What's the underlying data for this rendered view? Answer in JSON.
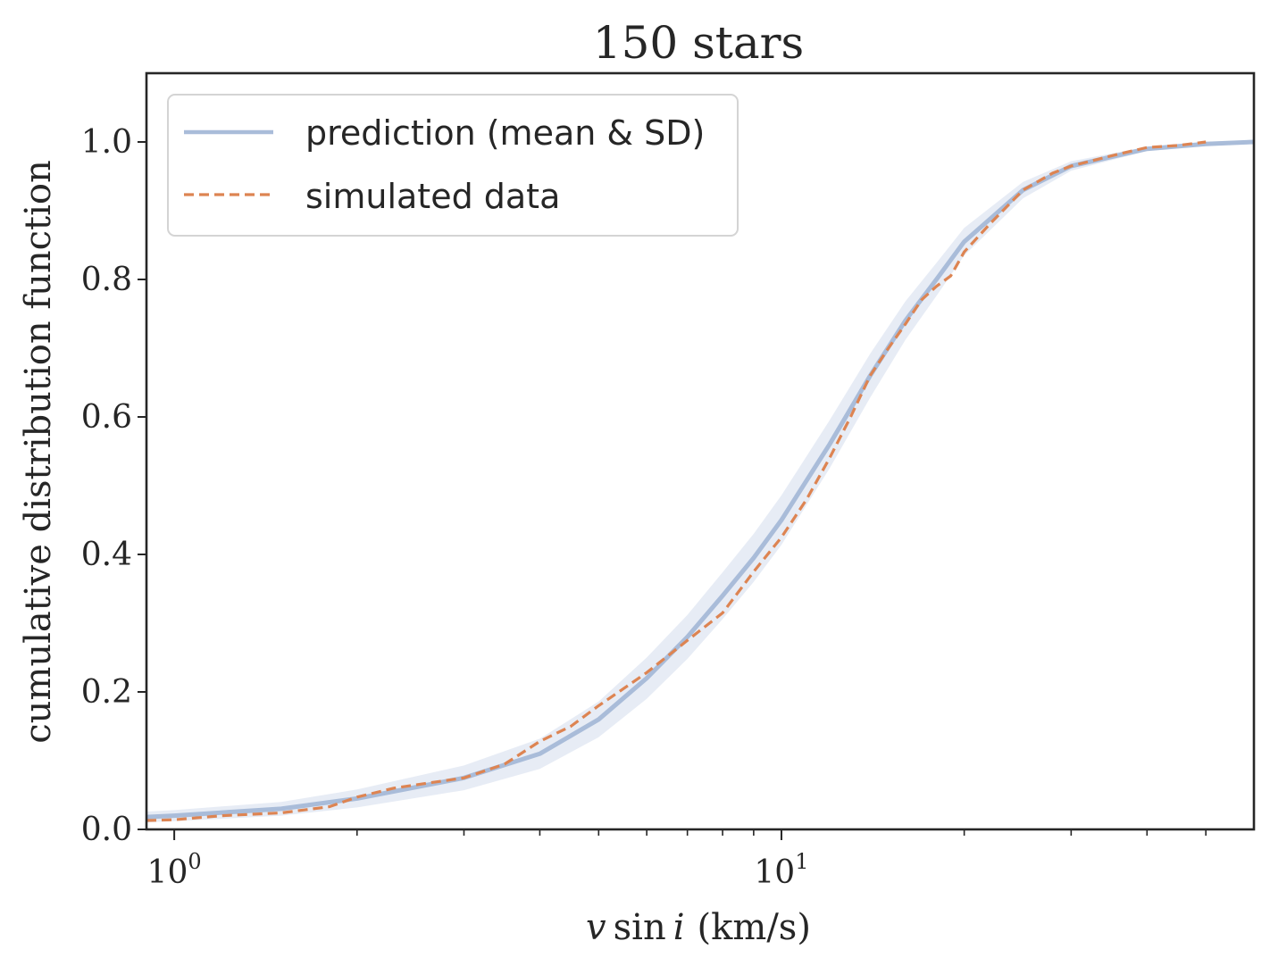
{
  "chart_data": {
    "type": "line",
    "title": "150 stars",
    "xlabel": "v sin i (km/s)",
    "xlabel_parts": {
      "v": "v",
      "sin": "sin",
      "i": "i",
      "units": "(km/s)"
    },
    "ylabel": "cumulative distribution function",
    "xscale": "log",
    "xlim": [
      0.9,
      60
    ],
    "ylim": [
      0.0,
      1.1
    ],
    "x_ticks": [
      {
        "value": 1,
        "base": "10",
        "exp": "0"
      },
      {
        "value": 10,
        "base": "10",
        "exp": "1"
      }
    ],
    "y_ticks": [
      {
        "value": 0.0,
        "label": "0.0"
      },
      {
        "value": 0.2,
        "label": "0.2"
      },
      {
        "value": 0.4,
        "label": "0.4"
      },
      {
        "value": 0.6,
        "label": "0.6"
      },
      {
        "value": 0.8,
        "label": "0.8"
      },
      {
        "value": 1.0,
        "label": "1.0"
      }
    ],
    "legend_position": "top-left",
    "series": [
      {
        "name": "prediction (mean & SD)",
        "style": "solid",
        "color": "#a9bcd9",
        "band_color": "#dfe5f2",
        "x": [
          0.9,
          1.0,
          1.5,
          2.0,
          3.0,
          4.0,
          5.0,
          6.0,
          7.0,
          8.0,
          9.0,
          10.0,
          12.0,
          14.0,
          16.0,
          18.0,
          20.0,
          25.0,
          30.0,
          40.0,
          50.0,
          60.0
        ],
        "mean": [
          0.018,
          0.02,
          0.03,
          0.045,
          0.075,
          0.11,
          0.16,
          0.22,
          0.28,
          0.34,
          0.395,
          0.45,
          0.56,
          0.66,
          0.74,
          0.8,
          0.855,
          0.93,
          0.965,
          0.99,
          0.997,
          1.0
        ],
        "sd": [
          0.008,
          0.008,
          0.01,
          0.013,
          0.018,
          0.022,
          0.026,
          0.03,
          0.032,
          0.034,
          0.035,
          0.036,
          0.035,
          0.032,
          0.028,
          0.024,
          0.02,
          0.012,
          0.007,
          0.003,
          0.001,
          0.0
        ]
      },
      {
        "name": "simulated data",
        "style": "dashed",
        "color": "#dd8452",
        "x": [
          0.9,
          1.0,
          1.2,
          1.5,
          1.8,
          2.0,
          2.3,
          2.6,
          3.0,
          3.5,
          4.0,
          4.5,
          5.0,
          5.5,
          6.0,
          7.0,
          8.0,
          9.0,
          10.0,
          11.0,
          12.0,
          13.0,
          14.0,
          15.0,
          16.0,
          17.0,
          18.0,
          19.0,
          20.0,
          22.0,
          25.0,
          28.0,
          30.0,
          35.0,
          40.0,
          45.0,
          50.0
        ],
        "values": [
          0.013,
          0.014,
          0.02,
          0.024,
          0.033,
          0.047,
          0.06,
          0.067,
          0.075,
          0.095,
          0.128,
          0.15,
          0.18,
          0.205,
          0.228,
          0.275,
          0.315,
          0.375,
          0.425,
          0.48,
          0.54,
          0.6,
          0.66,
          0.7,
          0.735,
          0.77,
          0.79,
          0.805,
          0.84,
          0.88,
          0.93,
          0.955,
          0.965,
          0.98,
          0.992,
          0.995,
          1.0
        ]
      }
    ]
  }
}
